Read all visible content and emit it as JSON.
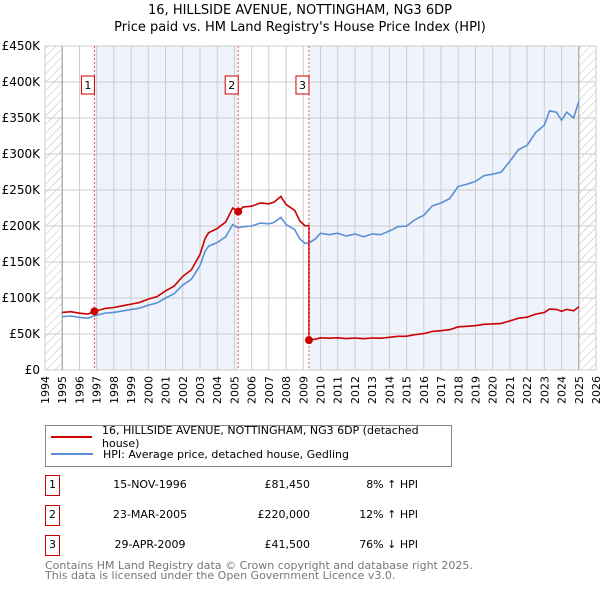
{
  "chart_data": {
    "type": "line",
    "title": "16, HILLSIDE AVENUE, NOTTINGHAM, NG3 6DP",
    "subtitle": "Price paid vs. HM Land Registry's House Price Index (HPI)",
    "xlim": [
      1994,
      2026
    ],
    "ylim": [
      0,
      450000
    ],
    "x_ticks": [
      "1994",
      "1995",
      "1996",
      "1997",
      "1998",
      "1999",
      "2000",
      "2001",
      "2002",
      "2003",
      "2004",
      "2005",
      "2006",
      "2007",
      "2008",
      "2009",
      "2010",
      "2011",
      "2012",
      "2013",
      "2014",
      "2015",
      "2016",
      "2017",
      "2018",
      "2019",
      "2020",
      "2021",
      "2022",
      "2023",
      "2024",
      "2025",
      "2026"
    ],
    "y_ticks": [
      {
        "v": 0,
        "label": "£0"
      },
      {
        "v": 50000,
        "label": "£50K"
      },
      {
        "v": 100000,
        "label": "£100K"
      },
      {
        "v": 150000,
        "label": "£150K"
      },
      {
        "v": 200000,
        "label": "£200K"
      },
      {
        "v": 250000,
        "label": "£250K"
      },
      {
        "v": 300000,
        "label": "£300K"
      },
      {
        "v": 350000,
        "label": "£350K"
      },
      {
        "v": 400000,
        "label": "£400K"
      },
      {
        "v": 450000,
        "label": "£450K"
      }
    ],
    "grid": true,
    "data_range": [
      1995,
      2025
    ],
    "series": [
      {
        "name": "16, HILLSIDE AVENUE, NOTTINGHAM, NG3 6DP (detached house)",
        "color": "#cc0000",
        "derived_from": "HPI indexed to sales"
      },
      {
        "name": "HPI: Average price, detached house, Gedling",
        "color": "#5b8fd4",
        "points": [
          [
            1995.0,
            74000
          ],
          [
            1995.5,
            75000
          ],
          [
            1996.0,
            73000
          ],
          [
            1996.5,
            72000
          ],
          [
            1996.87,
            75400
          ],
          [
            1997.5,
            79000
          ],
          [
            1998,
            80000
          ],
          [
            1998.5,
            82000
          ],
          [
            1999,
            84000
          ],
          [
            1999.5,
            86000
          ],
          [
            2000,
            90000
          ],
          [
            2000.5,
            93000
          ],
          [
            2001,
            100000
          ],
          [
            2001.5,
            106000
          ],
          [
            2002,
            118000
          ],
          [
            2002.5,
            126000
          ],
          [
            2003,
            145000
          ],
          [
            2003.3,
            165000
          ],
          [
            2003.5,
            172000
          ],
          [
            2004,
            177000
          ],
          [
            2004.5,
            185000
          ],
          [
            2004.9,
            202000
          ],
          [
            2005.22,
            197300
          ],
          [
            2005.5,
            199000
          ],
          [
            2006,
            200000
          ],
          [
            2006.5,
            204000
          ],
          [
            2007,
            203000
          ],
          [
            2007.3,
            205000
          ],
          [
            2007.7,
            212000
          ],
          [
            2008,
            202000
          ],
          [
            2008.5,
            195000
          ],
          [
            2008.8,
            182000
          ],
          [
            2009.1,
            176000
          ],
          [
            2009.33,
            176500
          ],
          [
            2009.7,
            182000
          ],
          [
            2010,
            190000
          ],
          [
            2010.5,
            188000
          ],
          [
            2011,
            190000
          ],
          [
            2011.5,
            186000
          ],
          [
            2012,
            189000
          ],
          [
            2012.5,
            185000
          ],
          [
            2013,
            189000
          ],
          [
            2013.5,
            188000
          ],
          [
            2014,
            193000
          ],
          [
            2014.5,
            199000
          ],
          [
            2015,
            200000
          ],
          [
            2015.5,
            209000
          ],
          [
            2016,
            215000
          ],
          [
            2016.5,
            228000
          ],
          [
            2017,
            232000
          ],
          [
            2017.5,
            238000
          ],
          [
            2018,
            255000
          ],
          [
            2018.5,
            258000
          ],
          [
            2019,
            262000
          ],
          [
            2019.5,
            270000
          ],
          [
            2020,
            272000
          ],
          [
            2020.5,
            275000
          ],
          [
            2021,
            290000
          ],
          [
            2021.5,
            306000
          ],
          [
            2022,
            312000
          ],
          [
            2022.5,
            330000
          ],
          [
            2023,
            340000
          ],
          [
            2023.3,
            360000
          ],
          [
            2023.7,
            358000
          ],
          [
            2024,
            347000
          ],
          [
            2024.3,
            358000
          ],
          [
            2024.7,
            350000
          ],
          [
            2025,
            373000
          ]
        ]
      }
    ],
    "sales": [
      {
        "label": "1",
        "x": 1996.87,
        "date": "15-NOV-1996",
        "price": 81450,
        "price_text": "£81,450",
        "hpi": "8% ↑ HPI"
      },
      {
        "label": "2",
        "x": 2005.22,
        "date": "23-MAR-2005",
        "price": 220000,
        "price_text": "£220,000",
        "hpi": "12% ↑ HPI"
      },
      {
        "label": "3",
        "x": 2009.33,
        "date": "29-APR-2009",
        "price": 41500,
        "price_text": "£41,500",
        "hpi": "76% ↓ HPI"
      }
    ]
  },
  "legend": {
    "red": "16, HILLSIDE AVENUE, NOTTINGHAM, NG3 6DP (detached house)",
    "blue": "HPI: Average price, detached house, Gedling"
  },
  "footer": {
    "line1": "Contains HM Land Registry data © Crown copyright and database right 2025.",
    "line2": "This data is licensed under the Open Government Licence v3.0."
  }
}
